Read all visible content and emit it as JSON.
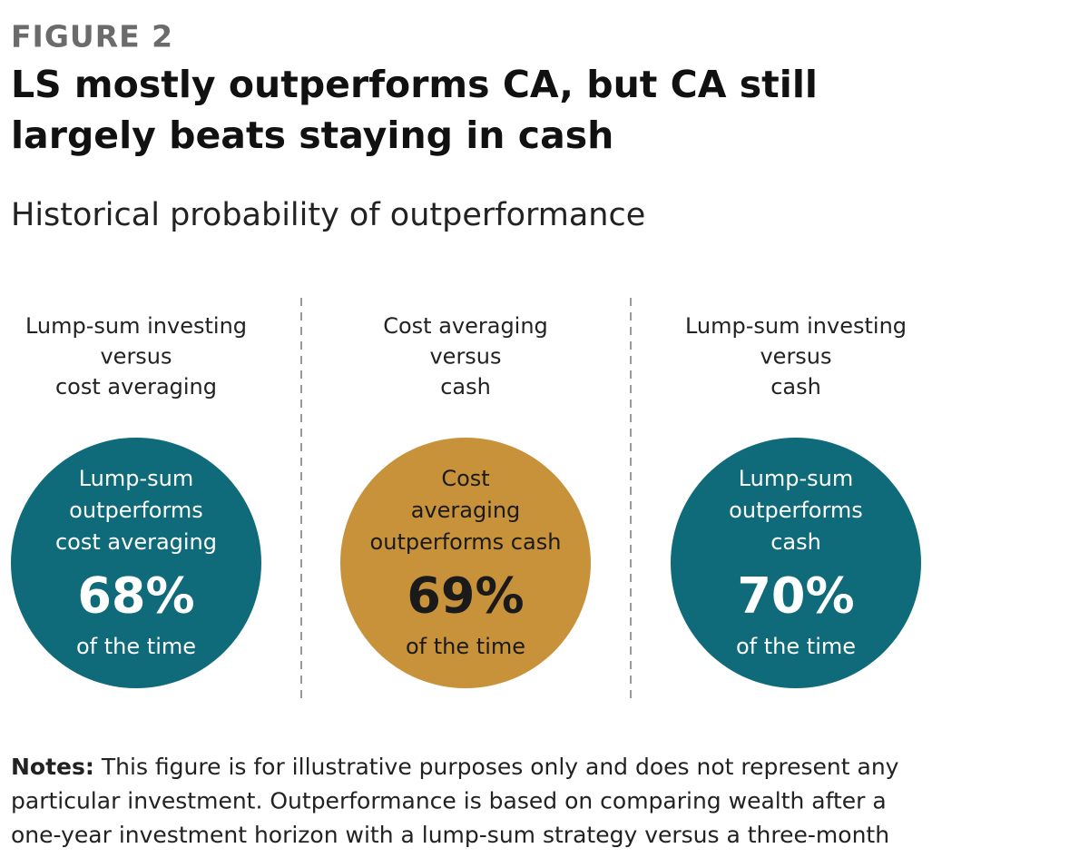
{
  "header": {
    "label": "FIGURE 2",
    "title_lines": [
      "LS mostly outperforms CA, but CA still",
      "largely beats staying in cash"
    ],
    "subtitle": "Historical probability of outperformance"
  },
  "panels": [
    {
      "heading_lines": [
        "Lump-sum investing",
        "versus",
        "cost averaging"
      ],
      "circle_lines": [
        "Lump-sum",
        "outperforms",
        "cost averaging"
      ],
      "percent": "68%",
      "suffix": "of the time",
      "color": "#0f6a7a",
      "text_color": "#ffffff"
    },
    {
      "heading_lines": [
        "Cost averaging",
        "versus",
        "cash"
      ],
      "circle_lines": [
        "Cost",
        "averaging",
        "outperforms cash"
      ],
      "percent": "69%",
      "suffix": "of the time",
      "color": "#c8923b",
      "text_color": "#1a1a1a"
    },
    {
      "heading_lines": [
        "Lump-sum investing",
        "versus",
        "cash"
      ],
      "circle_lines": [
        "Lump-sum",
        "outperforms",
        "cash"
      ],
      "percent": "70%",
      "suffix": "of the time",
      "color": "#0f6a7a",
      "text_color": "#ffffff"
    }
  ],
  "notes": {
    "label": "Notes:",
    "lines": [
      "This figure is for illustrative purposes only and does not represent any",
      "particular investment. Outperformance is based on comparing wealth after a",
      "one-year investment horizon with a lump-sum strategy versus a three-month"
    ]
  }
}
